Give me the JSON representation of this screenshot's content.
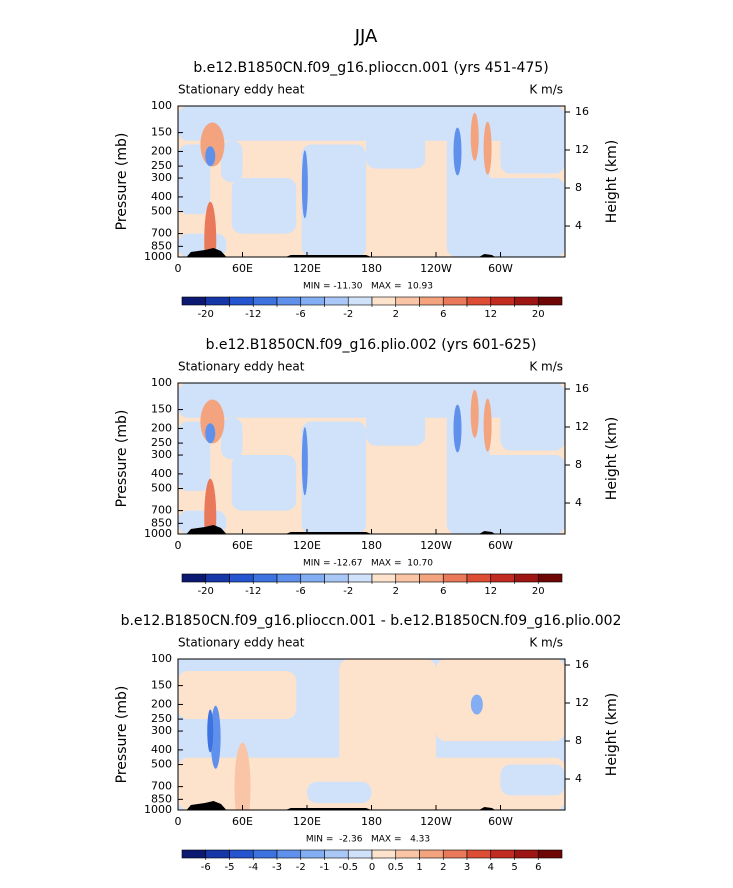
{
  "title": "JJA",
  "chart_data": [
    {
      "type": "contour",
      "title": "b.e12.B1850CN.f09_g16.plioccn.001 (yrs 451-475)",
      "left_label": "Stationary eddy heat",
      "right_label": "K m/s",
      "ylabel": "Pressure (mb)",
      "y2label": "Height (km)",
      "stats": "MIN = -11.30   MAX =  10.93",
      "ylim": [
        1000,
        100
      ],
      "yscale": "log",
      "yticks": [
        100,
        150,
        200,
        250,
        300,
        400,
        500,
        700,
        850,
        1000
      ],
      "y2lim": [
        0.74,
        16.63
      ],
      "y2ticks": [
        4,
        8,
        12,
        16
      ],
      "xlim": [
        0,
        360
      ],
      "xticks": [
        0,
        {
          "value": 60,
          "label": "60E"
        },
        {
          "value": 120,
          "label": "120E"
        },
        180,
        {
          "value": 240,
          "label": "120W"
        },
        {
          "value": 300,
          "label": "60W"
        }
      ],
      "colorbar": {
        "levels": [
          -20,
          -16,
          -12,
          -8,
          -6,
          -4,
          -2,
          0,
          2,
          4,
          6,
          8,
          12,
          16,
          20
        ],
        "label_every": 2,
        "colors": [
          "#0b1a70",
          "#1637a8",
          "#2454cf",
          "#3c73e0",
          "#5f91ec",
          "#84aef3",
          "#a9c8f7",
          "#d0e1fa",
          "#fde2cc",
          "#f9c5a6",
          "#f3a47f",
          "#e9795a",
          "#dc4d34",
          "#c22b20",
          "#9d1613",
          "#6e0606"
        ]
      }
    },
    {
      "type": "contour",
      "title": "b.e12.B1850CN.f09_g16.plio.002 (yrs 601-625)",
      "left_label": "Stationary eddy heat",
      "right_label": "K m/s",
      "ylabel": "Pressure (mb)",
      "y2label": "Height (km)",
      "stats": "MIN = -12.67   MAX =  10.70",
      "ylim": [
        1000,
        100
      ],
      "yscale": "log",
      "yticks": [
        100,
        150,
        200,
        250,
        300,
        400,
        500,
        700,
        850,
        1000
      ],
      "y2lim": [
        0.74,
        16.63
      ],
      "y2ticks": [
        4,
        8,
        12,
        16
      ],
      "xlim": [
        0,
        360
      ],
      "xticks": [
        0,
        {
          "value": 60,
          "label": "60E"
        },
        {
          "value": 120,
          "label": "120E"
        },
        180,
        {
          "value": 240,
          "label": "120W"
        },
        {
          "value": 300,
          "label": "60W"
        }
      ],
      "colorbar": {
        "levels": [
          -20,
          -16,
          -12,
          -8,
          -6,
          -4,
          -2,
          0,
          2,
          4,
          6,
          8,
          12,
          16,
          20
        ],
        "label_every": 2,
        "colors": [
          "#0b1a70",
          "#1637a8",
          "#2454cf",
          "#3c73e0",
          "#5f91ec",
          "#84aef3",
          "#a9c8f7",
          "#d0e1fa",
          "#fde2cc",
          "#f9c5a6",
          "#f3a47f",
          "#e9795a",
          "#dc4d34",
          "#c22b20",
          "#9d1613",
          "#6e0606"
        ]
      }
    },
    {
      "type": "contour",
      "title": "b.e12.B1850CN.f09_g16.plioccn.001 - b.e12.B1850CN.f09_g16.plio.002",
      "left_label": "Stationary eddy heat",
      "right_label": "K m/s",
      "ylabel": "Pressure (mb)",
      "y2label": "Height (km)",
      "stats": "MIN =  -2.36   MAX =   4.33",
      "ylim": [
        1000,
        100
      ],
      "yscale": "log",
      "yticks": [
        100,
        150,
        200,
        250,
        300,
        400,
        500,
        700,
        850,
        1000
      ],
      "y2lim": [
        0.74,
        16.63
      ],
      "y2ticks": [
        4,
        8,
        12,
        16
      ],
      "xlim": [
        0,
        360
      ],
      "xticks": [
        0,
        {
          "value": 60,
          "label": "60E"
        },
        {
          "value": 120,
          "label": "120E"
        },
        180,
        {
          "value": 240,
          "label": "120W"
        },
        {
          "value": 300,
          "label": "60W"
        }
      ],
      "colorbar": {
        "levels": [
          -6,
          -5,
          -4,
          -3,
          -2,
          -1,
          -0.5,
          0,
          0.5,
          1,
          2,
          3,
          4,
          5,
          6
        ],
        "label_every": 1,
        "colors": [
          "#0b1a70",
          "#1637a8",
          "#2454cf",
          "#3c73e0",
          "#5f91ec",
          "#84aef3",
          "#a9c8f7",
          "#d0e1fa",
          "#fde2cc",
          "#f9c5a6",
          "#f3a47f",
          "#e9795a",
          "#dc4d34",
          "#c22b20",
          "#9d1613",
          "#6e0606"
        ]
      }
    }
  ]
}
